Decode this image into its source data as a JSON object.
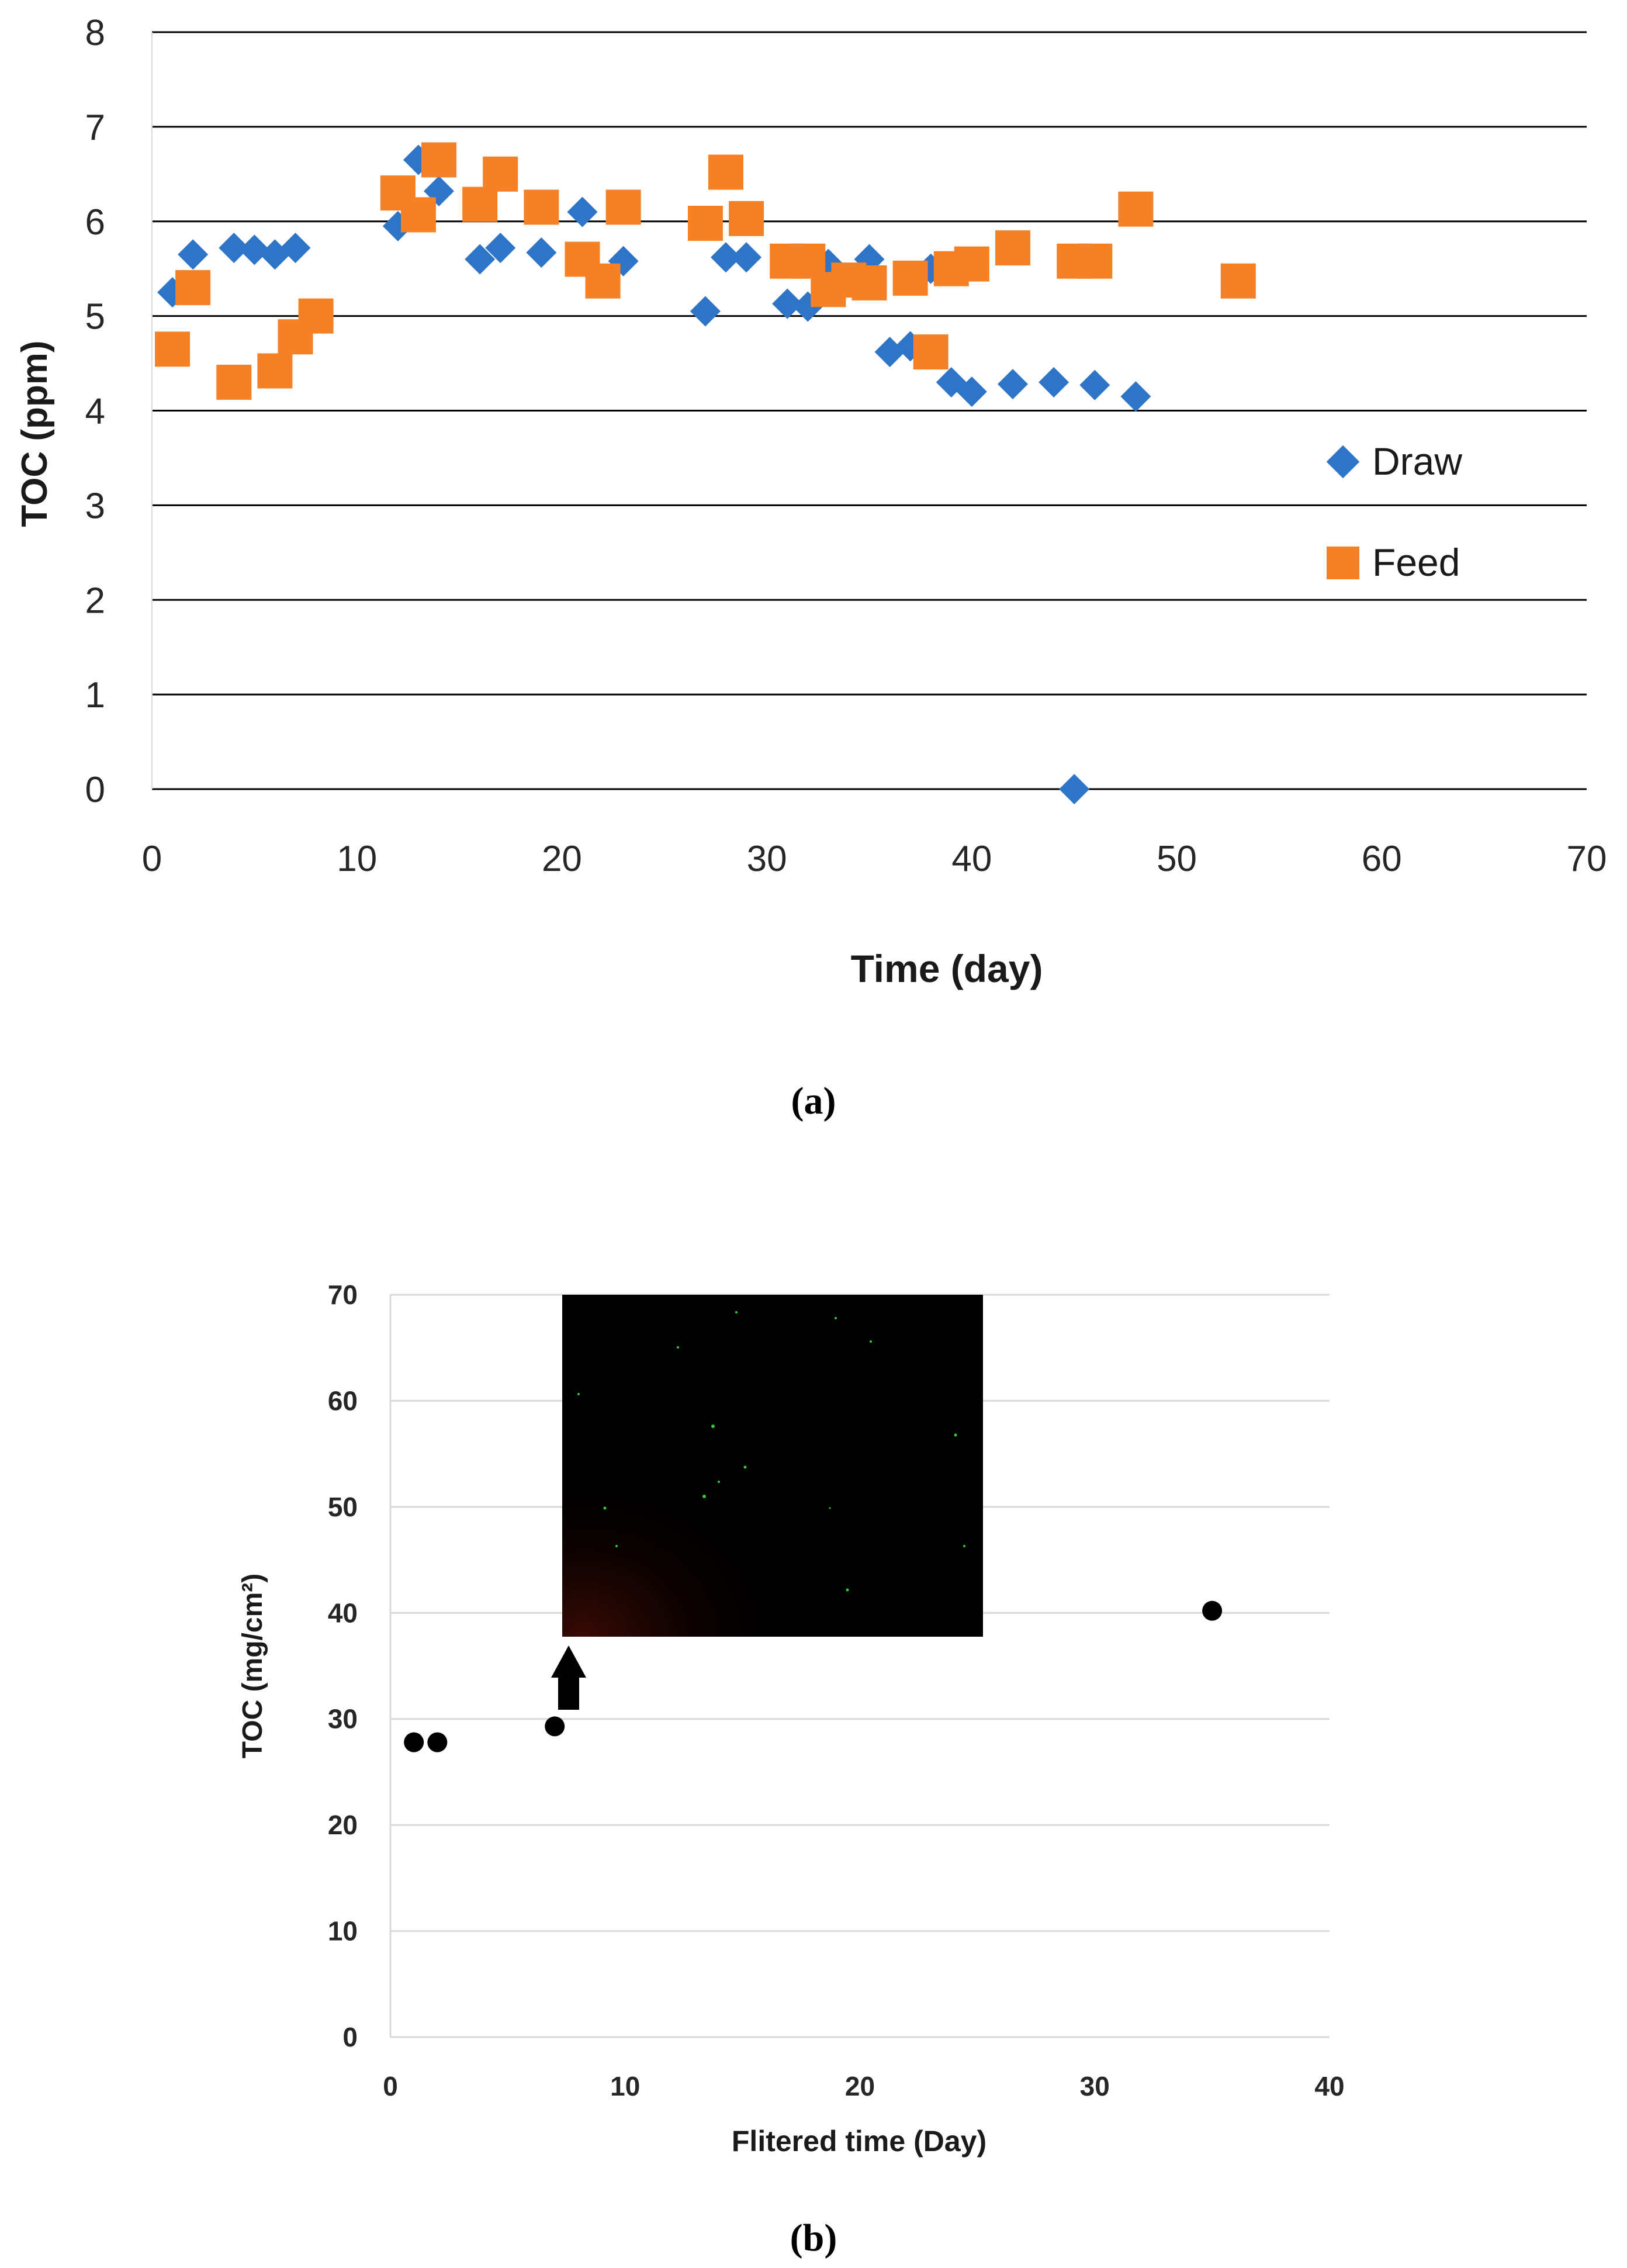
{
  "chart_data": [
    {
      "type": "scatter",
      "panel_label": "(a)",
      "title": "",
      "xlabel": "Time (day)",
      "ylabel": "TOC (ppm)",
      "xlim": [
        0,
        70
      ],
      "ylim": [
        0,
        8
      ],
      "xticks": [
        "0",
        "10",
        "20",
        "30",
        "40",
        "50",
        "60",
        "70"
      ],
      "yticks": [
        "0",
        "1",
        "2",
        "3",
        "4",
        "5",
        "6",
        "7",
        "8"
      ],
      "grid": "horizontal",
      "legend_position": "right",
      "series": [
        {
          "name": "Draw",
          "marker": "diamond",
          "color": "#2e75c8",
          "points": [
            [
              1,
              5.25
            ],
            [
              2,
              5.65
            ],
            [
              4,
              5.72
            ],
            [
              5,
              5.7
            ],
            [
              6,
              5.65
            ],
            [
              7,
              5.72
            ],
            [
              12,
              5.95
            ],
            [
              13,
              6.65
            ],
            [
              14,
              6.32
            ],
            [
              16,
              5.6
            ],
            [
              17,
              5.72
            ],
            [
              19,
              5.67
            ],
            [
              21,
              6.1
            ],
            [
              23,
              5.58
            ],
            [
              27,
              5.05
            ],
            [
              28,
              5.62
            ],
            [
              29,
              5.62
            ],
            [
              31,
              5.13
            ],
            [
              32,
              5.1
            ],
            [
              33,
              5.55
            ],
            [
              35,
              5.6
            ],
            [
              36,
              4.62
            ],
            [
              37,
              4.68
            ],
            [
              38,
              5.5
            ],
            [
              39,
              4.3
            ],
            [
              40,
              4.2
            ],
            [
              42,
              4.28
            ],
            [
              44,
              4.3
            ],
            [
              45,
              0
            ],
            [
              46,
              4.27
            ],
            [
              48,
              4.15
            ]
          ]
        },
        {
          "name": "Feed",
          "marker": "square",
          "color": "#f58025",
          "points": [
            [
              1,
              4.65
            ],
            [
              2,
              5.3
            ],
            [
              4,
              4.3
            ],
            [
              6,
              4.42
            ],
            [
              7,
              4.78
            ],
            [
              8,
              5.0
            ],
            [
              12,
              6.3
            ],
            [
              13,
              6.07
            ],
            [
              14,
              6.65
            ],
            [
              16,
              6.18
            ],
            [
              17,
              6.5
            ],
            [
              19,
              6.15
            ],
            [
              21,
              5.6
            ],
            [
              22,
              5.37
            ],
            [
              23,
              6.15
            ],
            [
              27,
              5.98
            ],
            [
              28,
              6.52
            ],
            [
              29,
              6.03
            ],
            [
              31,
              5.58
            ],
            [
              32,
              5.58
            ],
            [
              33,
              5.28
            ],
            [
              34,
              5.38
            ],
            [
              35,
              5.35
            ],
            [
              37,
              5.4
            ],
            [
              38,
              4.62
            ],
            [
              39,
              5.5
            ],
            [
              40,
              5.55
            ],
            [
              42,
              5.72
            ],
            [
              45,
              5.58
            ],
            [
              46,
              5.58
            ],
            [
              48,
              6.13
            ],
            [
              53,
              5.37
            ]
          ]
        }
      ]
    },
    {
      "type": "scatter",
      "panel_label": "(b)",
      "title": "",
      "xlabel": "Flitered time (Day)",
      "ylabel": "TOC (mg/cm²)",
      "xlim": [
        0,
        40
      ],
      "ylim": [
        0,
        70
      ],
      "xticks": [
        "0",
        "10",
        "20",
        "30",
        "40"
      ],
      "yticks": [
        "0",
        "10",
        "20",
        "30",
        "40",
        "50",
        "60",
        "70"
      ],
      "grid": "horizontal",
      "series": [
        {
          "marker": "circle",
          "color": "#000000",
          "points": [
            [
              1,
              27.8
            ],
            [
              2,
              27.8
            ],
            [
              7,
              29.3
            ],
            [
              35,
              40.2
            ]
          ]
        }
      ],
      "annotation": "arrow pointing from day ~7.5 up to a fluorescence micrograph inset (black background with green dots)"
    }
  ]
}
